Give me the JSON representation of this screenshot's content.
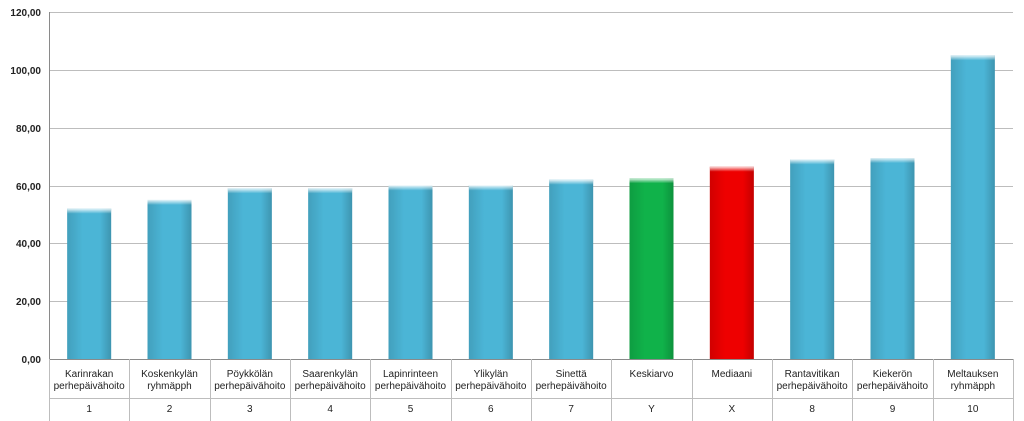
{
  "chart_data": {
    "type": "bar",
    "title": "",
    "xlabel": "",
    "ylabel": "",
    "ylim": [
      0,
      120
    ],
    "yticks": [
      "0,00",
      "20,00",
      "40,00",
      "60,00",
      "80,00",
      "100,00",
      "120,00"
    ],
    "grid": true,
    "legend": "none",
    "categories": [
      {
        "label": [
          "Karinrakan",
          "perhepäivähoito"
        ],
        "code": "1"
      },
      {
        "label": [
          "Koskenkylän",
          "ryhmäpph"
        ],
        "code": "2"
      },
      {
        "label": [
          "Pöykkölän",
          "perhepäivähoito"
        ],
        "code": "3"
      },
      {
        "label": [
          "Saarenkylän",
          "perhepäivähoito"
        ],
        "code": "4"
      },
      {
        "label": [
          "Lapinrinteen",
          "perhepäivähoito"
        ],
        "code": "5"
      },
      {
        "label": [
          "Ylikylän",
          "perhepäivähoito"
        ],
        "code": "6"
      },
      {
        "label": [
          "Sinettä",
          "perhepäivähoito"
        ],
        "code": "7"
      },
      {
        "label": [
          "Keskiarvo"
        ],
        "code": "Y"
      },
      {
        "label": [
          "Mediaani"
        ],
        "code": "X"
      },
      {
        "label": [
          "Rantavitikan",
          "perhepäivähoito"
        ],
        "code": "8"
      },
      {
        "label": [
          "Kiekerön",
          "perhepäivähoito"
        ],
        "code": "9"
      },
      {
        "label": [
          "Meltauksen",
          "ryhmäpph"
        ],
        "code": "10"
      }
    ],
    "values": [
      52,
      55,
      59,
      59,
      60,
      60,
      62,
      62.5,
      66.5,
      69,
      69.5,
      105
    ],
    "colors": [
      "#4bb5d6",
      "#4bb5d6",
      "#4bb5d6",
      "#4bb5d6",
      "#4bb5d6",
      "#4bb5d6",
      "#4bb5d6",
      "#10b24a",
      "#ee0000",
      "#4bb5d6",
      "#4bb5d6",
      "#4bb5d6"
    ]
  }
}
